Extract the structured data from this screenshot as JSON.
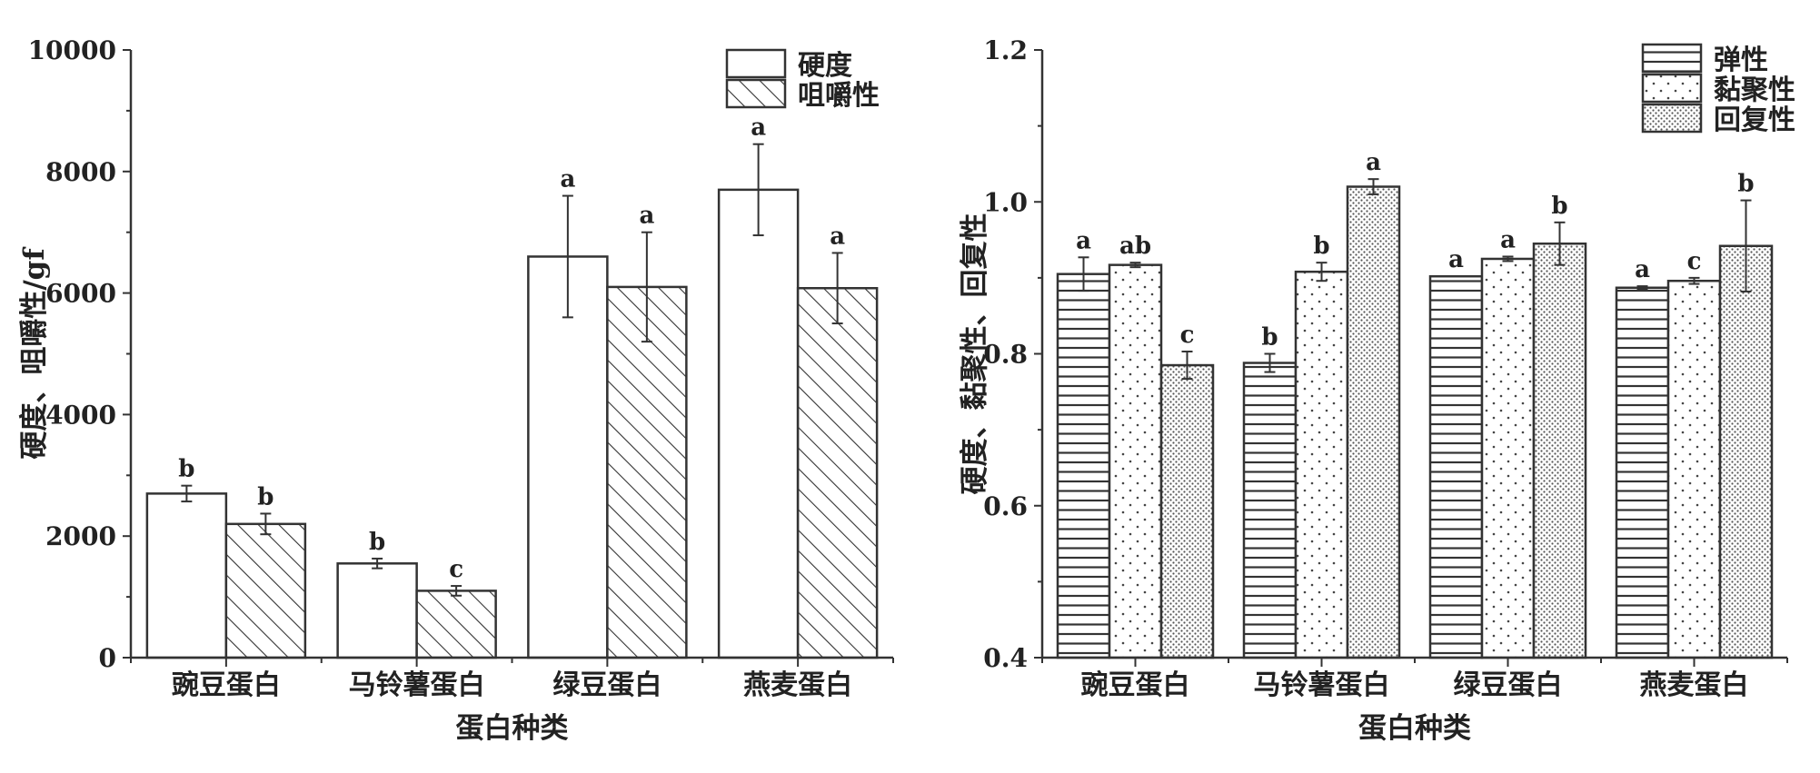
{
  "chart_data": [
    {
      "type": "bar",
      "xlabel": "蛋白种类",
      "ylabel": "硬度、咀嚼性/gf",
      "categories": [
        "豌豆蛋白",
        "马铃薯蛋白",
        "绿豆蛋白",
        "燕麦蛋白"
      ],
      "ylim": [
        0,
        10000
      ],
      "yticks": [
        0,
        2000,
        4000,
        6000,
        8000,
        10000
      ],
      "legend_position": "top-right",
      "grid": false,
      "series": [
        {
          "name": "硬度",
          "pattern": "none",
          "values": [
            2700,
            1550,
            6600,
            7700
          ],
          "errors": [
            130,
            80,
            1000,
            750
          ],
          "labels": [
            "b",
            "b",
            "a",
            "a"
          ]
        },
        {
          "name": "咀嚼性",
          "pattern": "diagonal-hatch",
          "values": [
            2200,
            1100,
            6100,
            6080
          ],
          "errors": [
            170,
            80,
            900,
            580
          ],
          "labels": [
            "b",
            "c",
            "a",
            "a"
          ]
        }
      ]
    },
    {
      "type": "bar",
      "xlabel": "蛋白种类",
      "ylabel": "硬度、黏聚性、回复性",
      "categories": [
        "豌豆蛋白",
        "马铃薯蛋白",
        "绿豆蛋白",
        "燕麦蛋白"
      ],
      "ylim": [
        0.4,
        1.2
      ],
      "yticks": [
        "0.4",
        "0.6",
        "0.8",
        "1.0",
        "1.2"
      ],
      "legend_position": "top-right",
      "grid": false,
      "series": [
        {
          "name": "弹性",
          "pattern": "horizontal-lines",
          "values": [
            0.905,
            0.788,
            0.902,
            0.887
          ],
          "errors": [
            0.022,
            0.012,
            0.0,
            0.002
          ],
          "labels": [
            "a",
            "b",
            "a",
            "a"
          ]
        },
        {
          "name": "黏聚性",
          "pattern": "sparse-dots",
          "values": [
            0.917,
            0.908,
            0.925,
            0.896
          ],
          "errors": [
            0.003,
            0.012,
            0.003,
            0.004
          ],
          "labels": [
            "ab",
            "b",
            "a",
            "c"
          ]
        },
        {
          "name": "回复性",
          "pattern": "dense-dots",
          "values": [
            0.785,
            1.02,
            0.945,
            0.942
          ],
          "errors": [
            0.018,
            0.01,
            0.028,
            0.06
          ],
          "labels": [
            "c",
            "a",
            "b",
            "b"
          ]
        }
      ]
    }
  ]
}
